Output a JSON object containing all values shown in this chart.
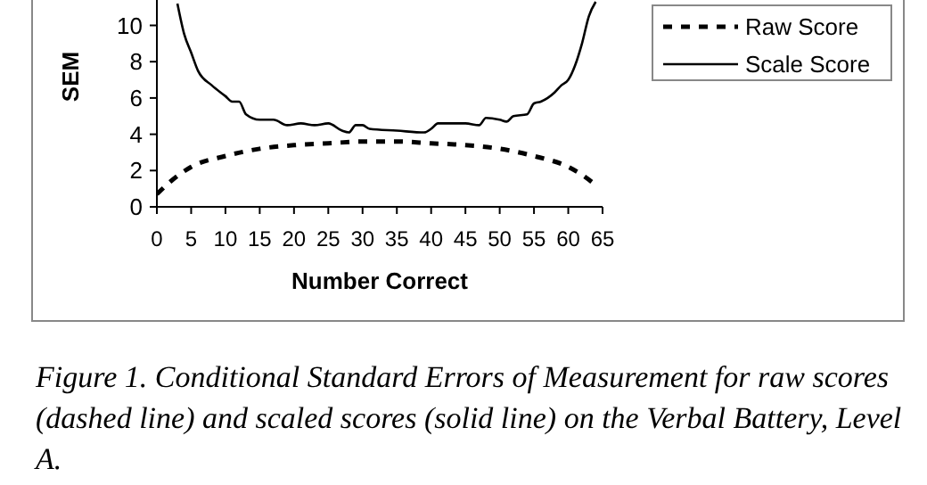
{
  "chart_data": {
    "type": "line",
    "xlabel": "Number Correct",
    "ylabel": "SEM",
    "xlim": [
      0,
      65
    ],
    "xticks": [
      0,
      5,
      10,
      15,
      20,
      25,
      30,
      35,
      40,
      45,
      50,
      55,
      60,
      65
    ],
    "ylim": [
      0,
      11.4
    ],
    "yticks": [
      0,
      2,
      4,
      6,
      8,
      10
    ],
    "grid": false,
    "legend": "top right",
    "marker": "none",
    "series": [
      {
        "name": "Raw Score",
        "color": "#000000",
        "line_style": "dashed",
        "x": [
          0,
          2,
          5,
          10,
          15,
          20,
          25,
          30,
          35,
          40,
          45,
          50,
          55,
          60,
          63,
          64
        ],
        "values": [
          0.7,
          1.4,
          2.2,
          2.8,
          3.2,
          3.4,
          3.5,
          3.6,
          3.6,
          3.5,
          3.4,
          3.2,
          2.8,
          2.2,
          1.5,
          1.2
        ]
      },
      {
        "name": "Scale Score",
        "color": "#000000",
        "line_style": "solid",
        "x": [
          3,
          4,
          5,
          6,
          8,
          10,
          11,
          12,
          13,
          15,
          17,
          19,
          21,
          23,
          25,
          27,
          28,
          29,
          30,
          31,
          35,
          39,
          40,
          41,
          45,
          47,
          48,
          50,
          51,
          52,
          54,
          55,
          56,
          58,
          59,
          60,
          61,
          62,
          63,
          64
        ],
        "values": [
          11.2,
          9.5,
          8.5,
          7.5,
          6.7,
          6.1,
          5.8,
          5.8,
          5.1,
          4.8,
          4.8,
          4.5,
          4.6,
          4.5,
          4.6,
          4.2,
          4.1,
          4.5,
          4.5,
          4.3,
          4.2,
          4.1,
          4.3,
          4.6,
          4.6,
          4.5,
          4.9,
          4.8,
          4.7,
          5.0,
          5.1,
          5.7,
          5.8,
          6.3,
          6.7,
          7.0,
          7.8,
          9.0,
          10.5,
          11.3
        ]
      }
    ],
    "annotations": [
      "Figure 1. Conditional Standard Errors of Measurement for raw scores (dashed line) and scaled scores (solid line) on the Verbal Battery, Level A."
    ]
  }
}
